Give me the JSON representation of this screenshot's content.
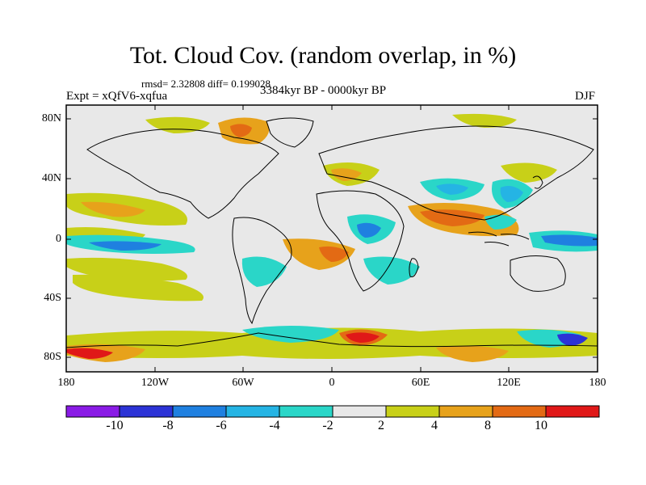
{
  "title": "Tot. Cloud Cov. (random overlap, in %)",
  "stats": "rmsd= 2.32808 diff= 0.199028",
  "experiment": "Expt = xQfV6-xqfua",
  "period": "3384kyr BP - 0000kyr BP",
  "season": "DJF",
  "lat_labels": [
    "80N",
    "40N",
    "0",
    "40S",
    "80S"
  ],
  "lon_labels": [
    "180",
    "120W",
    "60W",
    "0",
    "60E",
    "120E",
    "180"
  ],
  "colorbar": {
    "labels": [
      "-10",
      "-8",
      "-6",
      "-4",
      "-2",
      "2",
      "4",
      "8",
      "10"
    ],
    "colors": [
      "#8a1be6",
      "#2c33d6",
      "#1f80e0",
      "#25b4e4",
      "#2ad6c8",
      "#e8e8e8",
      "#c8d018",
      "#e7a21b",
      "#e36a14",
      "#e01818"
    ]
  },
  "colors": {
    "background": "#e8e8e8",
    "coast": "#000000"
  }
}
